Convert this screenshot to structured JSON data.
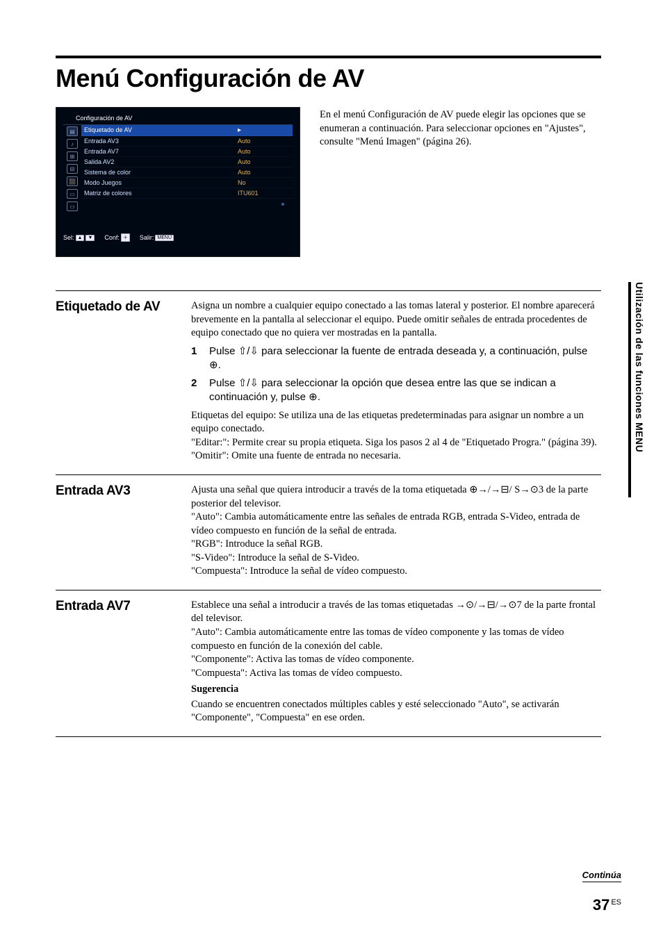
{
  "title": "Menú Configuración de AV",
  "intro": "En el menú Configuración de AV puede elegir las opciones que se enumeran a continuación. Para seleccionar opciones en \"Ajustes\", consulte \"Menú Imagen\" (página 26).",
  "screenshot": {
    "header": "Configuración de AV",
    "rows": [
      {
        "label": "Etiquetado de AV",
        "value": "",
        "highlight": true,
        "arrow": "▸"
      },
      {
        "label": "Entrada AV3",
        "value": "Auto"
      },
      {
        "label": "Entrada AV7",
        "value": "Auto"
      },
      {
        "label": "Salida AV2",
        "value": "Auto"
      },
      {
        "label": "Sistema de color",
        "value": "Auto"
      },
      {
        "label": "Modo Juegos",
        "value": "No"
      },
      {
        "label": "Matriz de colores",
        "value": "ITU601"
      }
    ],
    "footer": {
      "sel": "Sel:",
      "conf": "Conf:",
      "salir": "Salir:",
      "menu": "MENU"
    }
  },
  "sections": [
    {
      "title": "Etiquetado de AV",
      "intro": "Asigna un nombre a cualquier equipo conectado a las tomas lateral y posterior. El nombre aparecerá brevemente en la pantalla al seleccionar el equipo. Puede omitir señales de entrada procedentes de equipo conectado que no quiera ver mostradas en la pantalla.",
      "steps": [
        "Pulse ⇧/⇩ para seleccionar la fuente de entrada deseada y, a continuación, pulse ⊕.",
        "Pulse ⇧/⇩ para seleccionar la opción que desea entre las que se indican a continuación y, pulse ⊕."
      ],
      "after": [
        "Etiquetas del equipo: Se utiliza una de las etiquetas predeterminadas para asignar un nombre a un equipo conectado.",
        "\"Editar:\": Permite crear su propia etiqueta. Siga los pasos 2 al 4 de \"Etiquetado Progra.\" (página 39).",
        "\"Omitir\": Omite una fuente de entrada no necesaria."
      ]
    },
    {
      "title": "Entrada AV3",
      "body": [
        "Ajusta una señal que quiera introducir a través de la toma etiquetada ⊕→/→⊟/ S→⊙3 de la parte posterior del televisor.",
        "\"Auto\": Cambia automáticamente entre las señales de entrada RGB, entrada S-Video, entrada de vídeo compuesto en función de la señal de entrada.",
        "\"RGB\": Introduce la señal RGB.",
        "\"S-Video\": Introduce la señal de S-Video.",
        "\"Compuesta\": Introduce la señal de vídeo compuesto."
      ]
    },
    {
      "title": "Entrada AV7",
      "body": [
        "Establece una señal a introducir a través de las tomas etiquetadas →⊙/→⊟/→⊙7 de la parte frontal del televisor.",
        "\"Auto\": Cambia automáticamente entre las tomas de vídeo componente y las tomas de vídeo compuesto en función de la conexión del cable.",
        "\"Componente\": Activa las tomas de vídeo componente.",
        "\"Compuesta\": Activa las tomas de vídeo compuesto."
      ],
      "sugerencia_label": "Sugerencia",
      "sugerencia": "Cuando se encuentren conectados múltiples cables y esté seleccionado \"Auto\", se activarán \"Componente\", \"Compuesta\" en ese orden."
    }
  ],
  "sidetab": "Utilización de las funciones MENU",
  "footer": {
    "continua": "Continúa",
    "page": "37",
    "lang": "ES"
  },
  "colors": {
    "screenshot_bg": "#000814",
    "highlight_bg": "#1a4aa8",
    "value_color": "#e9b24a",
    "label_color": "#cfe0ff"
  }
}
